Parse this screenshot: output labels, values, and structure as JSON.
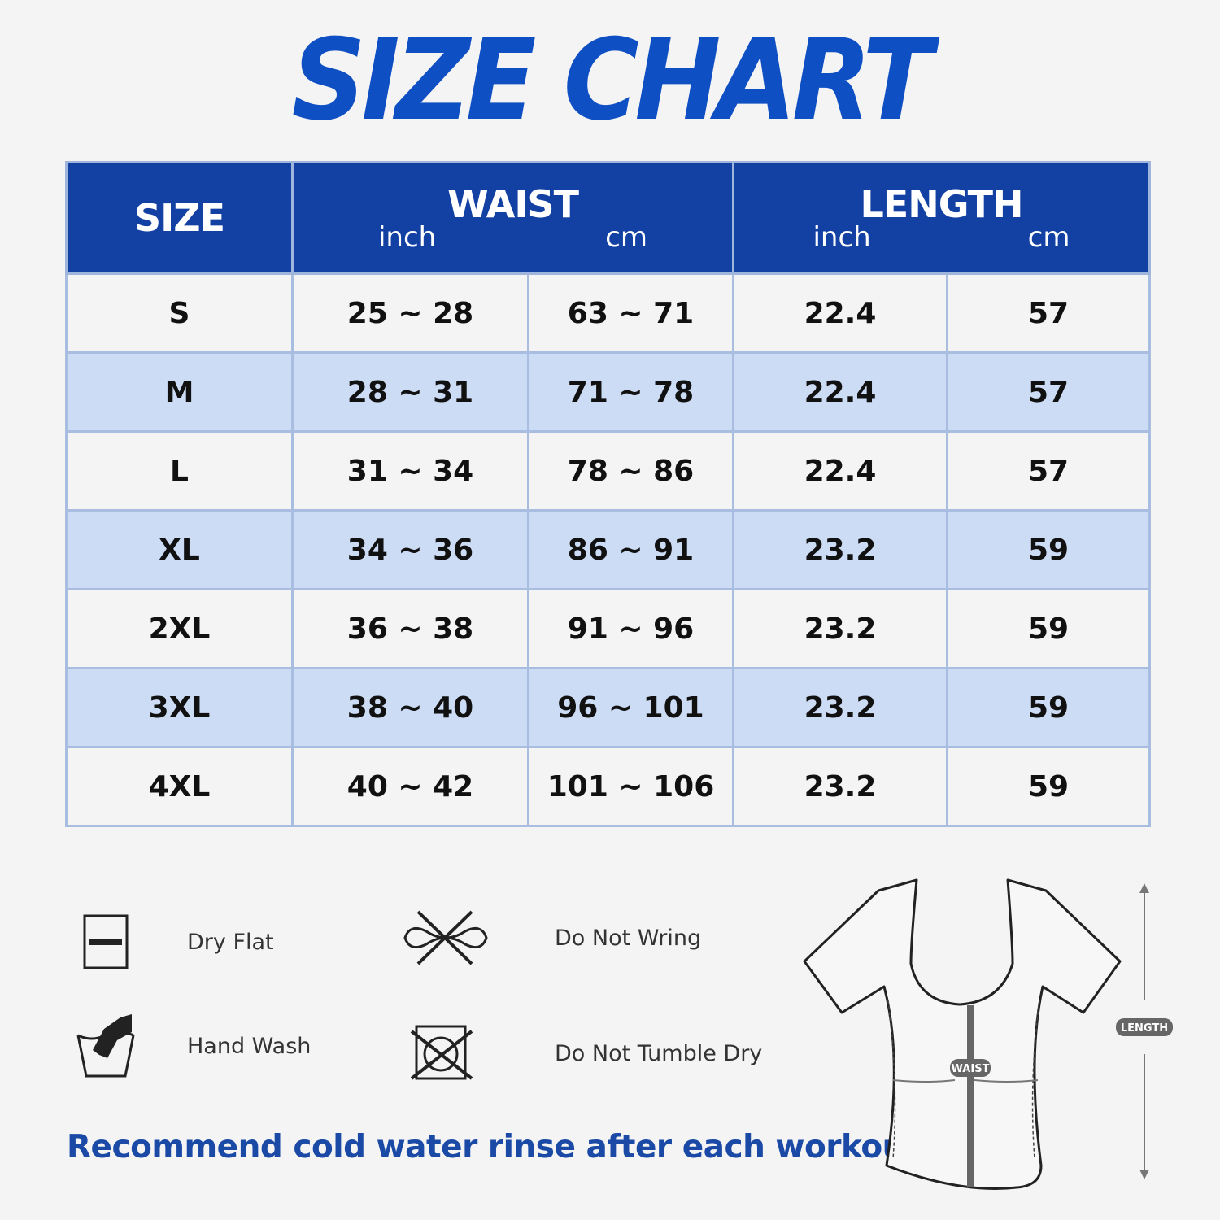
{
  "title": "SIZE CHART",
  "table": {
    "headers": {
      "size": "SIZE",
      "waist": "WAIST",
      "length": "LENGTH",
      "inch": "inch",
      "cm": "cm"
    },
    "rows": [
      {
        "size": "S",
        "waist_inch": "25 ~ 28",
        "waist_cm": "63 ~ 71",
        "length_inch": "22.4",
        "length_cm": "57"
      },
      {
        "size": "M",
        "waist_inch": "28 ~ 31",
        "waist_cm": "71 ~ 78",
        "length_inch": "22.4",
        "length_cm": "57"
      },
      {
        "size": "L",
        "waist_inch": "31 ~ 34",
        "waist_cm": "78 ~ 86",
        "length_inch": "22.4",
        "length_cm": "57"
      },
      {
        "size": "XL",
        "waist_inch": "34 ~ 36",
        "waist_cm": "86 ~ 91",
        "length_inch": "23.2",
        "length_cm": "59"
      },
      {
        "size": "2XL",
        "waist_inch": "36 ~ 38",
        "waist_cm": "91 ~ 96",
        "length_inch": "23.2",
        "length_cm": "59"
      },
      {
        "size": "3XL",
        "waist_inch": "38 ~ 40",
        "waist_cm": "96 ~ 101",
        "length_inch": "23.2",
        "length_cm": "59"
      },
      {
        "size": "4XL",
        "waist_inch": "40 ~ 42",
        "waist_cm": "101 ~ 106",
        "length_inch": "23.2",
        "length_cm": "59"
      }
    ]
  },
  "care": [
    {
      "icon": "dry-flat-icon",
      "label": "Dry Flat"
    },
    {
      "icon": "do-not-wring-icon",
      "label": "Do Not Wring"
    },
    {
      "icon": "hand-wash-icon",
      "label": "Hand Wash"
    },
    {
      "icon": "do-not-tumble-dry-icon",
      "label": "Do Not Tumble Dry"
    }
  ],
  "note": "Recommend cold water rinse after each workout.",
  "diagram": {
    "waist_label": "WAIST",
    "length_label": "LENGTH"
  },
  "colors": {
    "brand_blue": "#1241a3",
    "title_blue": "#0f4fc4",
    "row_alt": "#cddcf5"
  }
}
